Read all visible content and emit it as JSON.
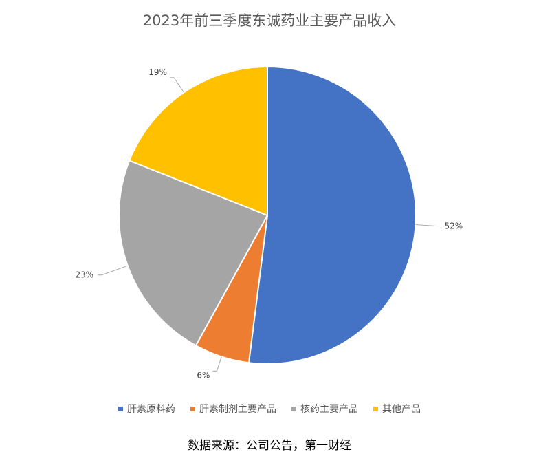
{
  "chart_data": {
    "type": "pie",
    "title": "2023年前三季度东诚药业主要产品收入",
    "categories": [
      "肝素原料药",
      "肝素制剂主要产品",
      "核药主要产品",
      "其他产品"
    ],
    "values": [
      52,
      6,
      23,
      19
    ],
    "labels": [
      "52%",
      "6%",
      "23%",
      "19%"
    ],
    "colors": [
      "#4472C4",
      "#ED7D31",
      "#A5A5A5",
      "#FFC000"
    ],
    "legend_position": "bottom"
  },
  "footer": {
    "source": "数据来源：公司公告，第一财经"
  }
}
